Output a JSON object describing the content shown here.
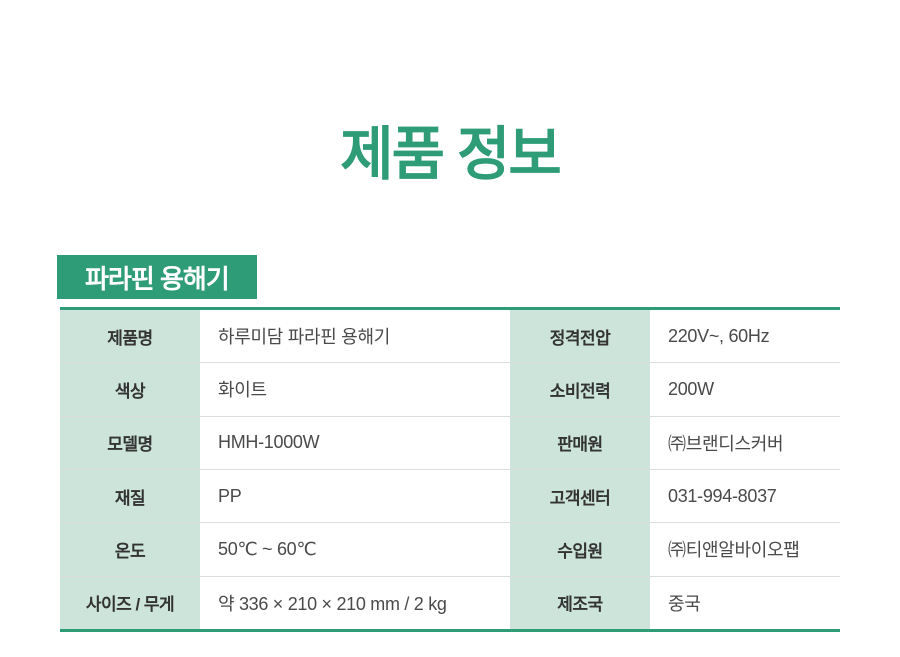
{
  "page": {
    "title": "제품 정보",
    "section_header": "파라핀 용해기"
  },
  "colors": {
    "accent_green": "#2E9C76",
    "label_bg": "#CCE4DA",
    "row_divider": "#DDDDDD",
    "label_text": "#333333",
    "value_text": "#4A4A4A"
  },
  "table": {
    "rows": [
      {
        "left_label": "제품명",
        "left_value": "하루미담 파라핀 용해기",
        "right_label": "정격전압",
        "right_value": "220V~, 60Hz"
      },
      {
        "left_label": "색상",
        "left_value": "화이트",
        "right_label": "소비전력",
        "right_value": "200W"
      },
      {
        "left_label": "모델명",
        "left_value": "HMH-1000W",
        "right_label": "판매원",
        "right_value": "㈜브랜디스커버"
      },
      {
        "left_label": "재질",
        "left_value": "PP",
        "right_label": "고객센터",
        "right_value": "031-994-8037"
      },
      {
        "left_label": "온도",
        "left_value": "50℃ ~ 60℃",
        "right_label": "수입원",
        "right_value": "㈜티앤알바이오팹"
      },
      {
        "left_label": "사이즈 / 무게",
        "left_value": "약 336 × 210 × 210 mm / 2 kg",
        "right_label": "제조국",
        "right_value": "중국"
      }
    ]
  }
}
